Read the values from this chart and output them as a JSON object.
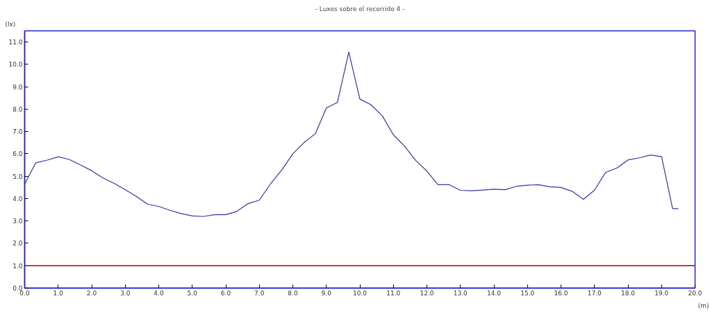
{
  "chart_data": {
    "type": "line",
    "title": "- Luxes sobre el recorrido 4 -",
    "xlabel": "(m)",
    "ylabel": "(lx)",
    "x": [
      0,
      0.33,
      0.67,
      1.0,
      1.33,
      1.67,
      2.0,
      2.33,
      2.67,
      3.0,
      3.33,
      3.67,
      4.0,
      4.33,
      4.67,
      5.0,
      5.33,
      5.67,
      6.0,
      6.33,
      6.67,
      7.0,
      7.33,
      7.67,
      8.0,
      8.33,
      8.67,
      9.0,
      9.33,
      9.67,
      10.0,
      10.33,
      10.67,
      11.0,
      11.33,
      11.67,
      12.0,
      12.33,
      12.67,
      13.0,
      13.33,
      13.67,
      14.0,
      14.33,
      14.67,
      15.0,
      15.33,
      15.67,
      16.0,
      16.33,
      16.67,
      17.0,
      17.33,
      17.67,
      18.0,
      18.33,
      18.67,
      19.0,
      19.33,
      19.5
    ],
    "series": [
      {
        "color": "#3333aa",
        "values": [
          4.65,
          5.6,
          5.72,
          5.87,
          5.75,
          5.5,
          5.25,
          4.93,
          4.68,
          4.4,
          4.1,
          3.75,
          3.65,
          3.48,
          3.33,
          3.23,
          3.2,
          3.28,
          3.28,
          3.43,
          3.78,
          3.93,
          4.65,
          5.28,
          6.0,
          6.5,
          6.9,
          8.05,
          8.3,
          10.55,
          8.45,
          8.2,
          7.7,
          6.85,
          6.35,
          5.7,
          5.23,
          4.62,
          4.62,
          4.37,
          4.35,
          4.38,
          4.42,
          4.4,
          4.55,
          4.6,
          4.62,
          4.53,
          4.5,
          4.33,
          3.97,
          4.38,
          5.17,
          5.37,
          5.73,
          5.82,
          5.95,
          5.88,
          3.55,
          3.55
        ]
      }
    ],
    "xlim": [
      0,
      20
    ],
    "ylim": [
      0,
      11.5
    ],
    "xticks": [
      {
        "value": 0,
        "label": "0.0"
      },
      {
        "value": 1,
        "label": "1.0"
      },
      {
        "value": 2,
        "label": "2.0"
      },
      {
        "value": 3,
        "label": "3.0"
      },
      {
        "value": 4,
        "label": "4.0"
      },
      {
        "value": 5,
        "label": "5.0"
      },
      {
        "value": 6,
        "label": "6.0"
      },
      {
        "value": 7,
        "label": "7.0"
      },
      {
        "value": 8,
        "label": "8.0"
      },
      {
        "value": 9,
        "label": "9.0"
      },
      {
        "value": 10,
        "label": "10.0"
      },
      {
        "value": 11,
        "label": "11.0"
      },
      {
        "value": 12,
        "label": "12.0"
      },
      {
        "value": 13,
        "label": "13.0"
      },
      {
        "value": 14,
        "label": "14.0"
      },
      {
        "value": 15,
        "label": "15.0"
      },
      {
        "value": 16,
        "label": "16.0"
      },
      {
        "value": 17,
        "label": "17.0"
      },
      {
        "value": 18,
        "label": "18.0"
      },
      {
        "value": 19,
        "label": "19.0"
      },
      {
        "value": 20,
        "label": "20.0"
      }
    ],
    "yticks": [
      {
        "value": 0,
        "label": "0.0"
      },
      {
        "value": 1,
        "label": "1.0"
      },
      {
        "value": 2,
        "label": "2.0"
      },
      {
        "value": 3,
        "label": "3.0"
      },
      {
        "value": 4,
        "label": "4.0"
      },
      {
        "value": 5,
        "label": "5.0"
      },
      {
        "value": 6,
        "label": "6.0"
      },
      {
        "value": 7,
        "label": "7.0"
      },
      {
        "value": 8,
        "label": "8.0"
      },
      {
        "value": 9,
        "label": "9.0"
      },
      {
        "value": 10,
        "label": "10.0"
      },
      {
        "value": 11,
        "label": "11.0"
      }
    ],
    "ref_lines": [
      {
        "axis": "y",
        "value": 1.0,
        "color": "#aa0000"
      }
    ],
    "grid": false,
    "marker": "none",
    "line_style": "solid"
  }
}
